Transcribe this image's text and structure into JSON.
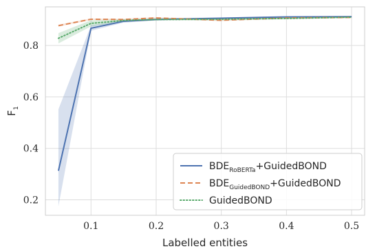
{
  "chart_data": {
    "type": "line",
    "xlabel": "Labelled entities",
    "ylabel": "F",
    "ylabel_subscript": "1",
    "xlim": [
      0.03,
      0.52
    ],
    "ylim": [
      0.14,
      0.95
    ],
    "xticks": [
      0.1,
      0.2,
      0.3,
      0.4,
      0.5
    ],
    "xtick_labels": [
      "0.1",
      "0.2",
      "0.3",
      "0.4",
      "0.5"
    ],
    "yticks": [
      0.2,
      0.4,
      0.6,
      0.8
    ],
    "ytick_labels": [
      "0.2",
      "0.4",
      "0.6",
      "0.8"
    ],
    "grid": true,
    "legend_position": "lower-right",
    "x": [
      0.05,
      0.1,
      0.15,
      0.2,
      0.3,
      0.4,
      0.5
    ],
    "series": [
      {
        "name_main": "BDE",
        "name_sub": "RoBERTa",
        "name_suffix": "+GuidedBOND",
        "color": "#4c72b0",
        "dash": "solid",
        "values": [
          0.313,
          0.867,
          0.894,
          0.901,
          0.906,
          0.911,
          0.912
        ],
        "band_low": [
          0.175,
          0.857,
          0.889,
          0.898,
          0.903,
          0.908,
          0.909
        ],
        "band_high": [
          0.552,
          0.878,
          0.899,
          0.905,
          0.909,
          0.914,
          0.915
        ]
      },
      {
        "name_main": "BDE",
        "name_sub": "GuidedBOND",
        "name_suffix": "+GuidedBOND",
        "color": "#dd8452",
        "dash": "dashed",
        "values": [
          0.877,
          0.902,
          0.901,
          0.907,
          0.898,
          0.907,
          0.909
        ],
        "band_low": [
          0.873,
          0.899,
          0.898,
          0.904,
          0.895,
          0.904,
          0.906
        ],
        "band_high": [
          0.881,
          0.905,
          0.904,
          0.91,
          0.901,
          0.91,
          0.912
        ]
      },
      {
        "name_main": "GuidedBOND",
        "name_sub": "",
        "name_suffix": "",
        "color": "#55a868",
        "dash": "dotted",
        "values": [
          0.828,
          0.886,
          0.897,
          0.901,
          0.902,
          0.905,
          0.91
        ],
        "band_low": [
          0.808,
          0.874,
          0.892,
          0.897,
          0.898,
          0.902,
          0.907
        ],
        "band_high": [
          0.848,
          0.898,
          0.902,
          0.905,
          0.906,
          0.908,
          0.913
        ]
      }
    ]
  }
}
